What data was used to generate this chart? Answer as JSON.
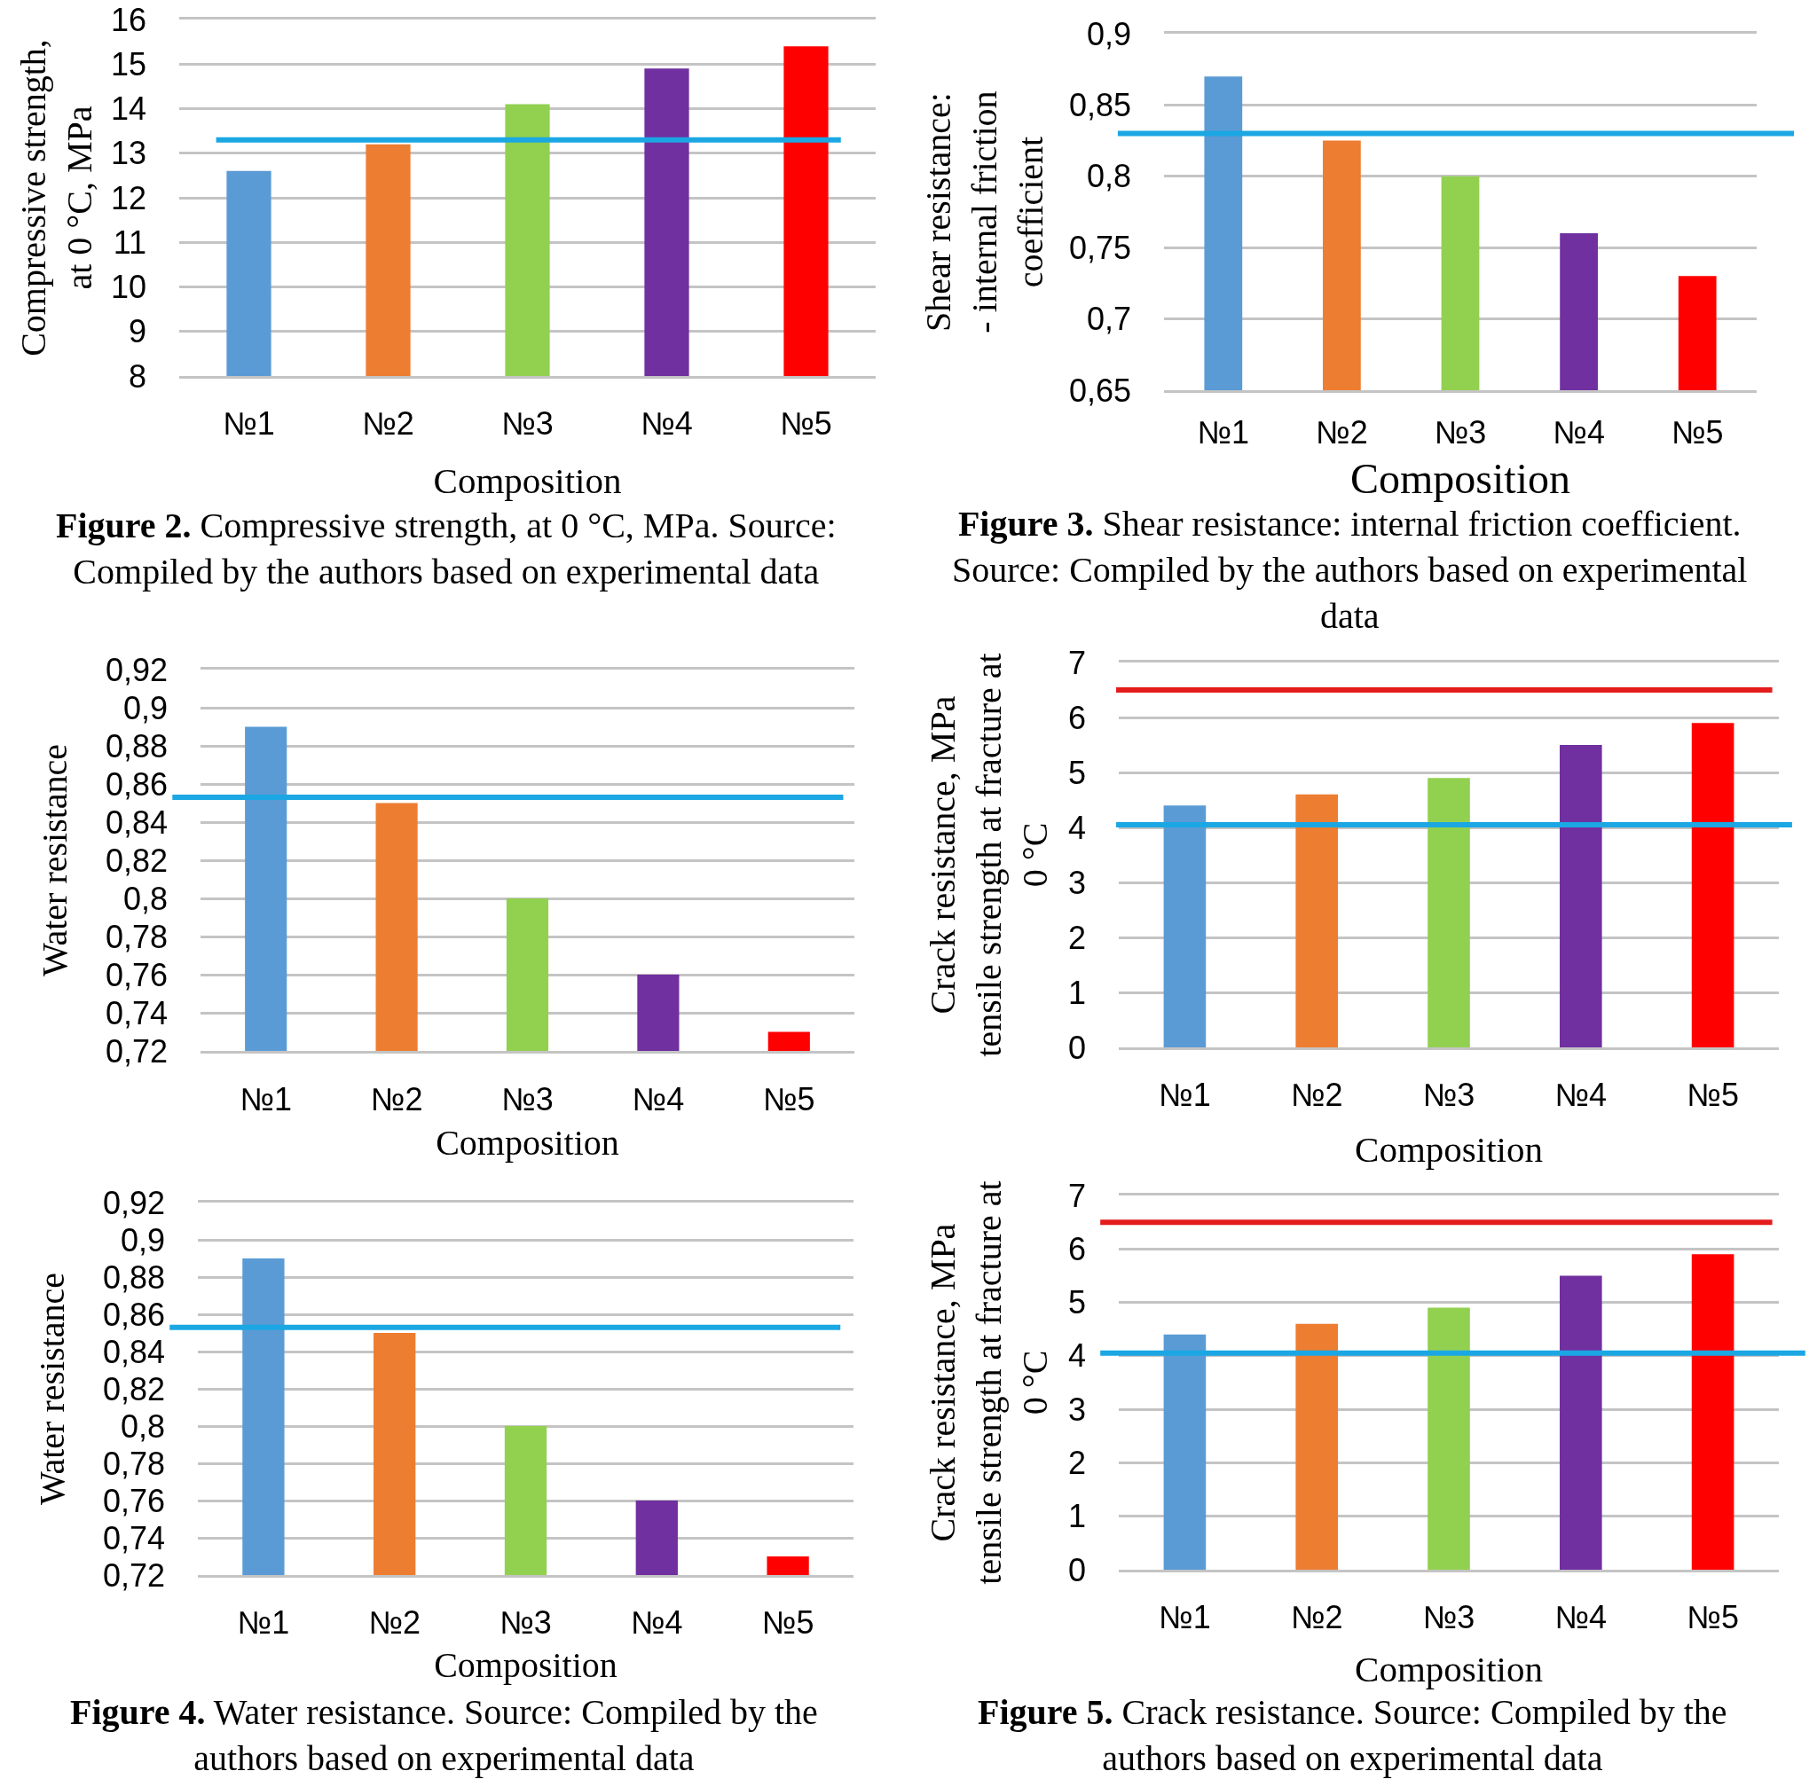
{
  "chart_data": [
    {
      "type": "bar",
      "categories": [
        "№1",
        "№2",
        "№3",
        "№4",
        "№5"
      ],
      "values": [
        12.6,
        13.2,
        14.1,
        14.9,
        15.4
      ],
      "colors": [
        "#5b9bd5",
        "#ed7d31",
        "#92d050",
        "#7030a0",
        "#ff0000"
      ],
      "xlabel": "Composition",
      "ylabel": "Compressive strength,\nat 0 °C, MPa",
      "ylim": [
        8,
        16
      ],
      "yticks": [
        8,
        9,
        10,
        11,
        12,
        13,
        14,
        15,
        16
      ],
      "grid": "y",
      "ref_lines": [
        {
          "axis": "y",
          "value": 13.3,
          "color": "#1ba7e3"
        }
      ],
      "annotations": [
        "Figure 2. Compressive strength, at 0 °C, MPa. Source:\nCompiled by the authors based on experimental data"
      ]
    },
    {
      "type": "bar",
      "categories": [
        "№1",
        "№2",
        "№3",
        "№4",
        "№5"
      ],
      "values": [
        0.87,
        0.825,
        0.8,
        0.76,
        0.73
      ],
      "colors": [
        "#5b9bd5",
        "#ed7d31",
        "#92d050",
        "#7030a0",
        "#ff0000"
      ],
      "xlabel": "Composition",
      "ylabel": "Shear resistance:\n- internal friction\ncoefficient",
      "ylim": [
        0.65,
        0.9
      ],
      "yticks": [
        {
          "value": 0.65,
          "label": "0,65"
        },
        {
          "value": 0.7,
          "label": "0,7"
        },
        {
          "value": 0.75,
          "label": "0,75"
        },
        {
          "value": 0.8,
          "label": "0,8"
        },
        {
          "value": 0.85,
          "label": "0,85"
        },
        {
          "value": 0.9,
          "label": "0,9"
        }
      ],
      "grid": "y",
      "ref_lines": [
        {
          "axis": "y",
          "value": 0.83,
          "color": "#1ba7e3"
        }
      ],
      "annotations": [
        "Figure 3. Shear resistance: internal friction coefficient.\nSource: Compiled by the authors based on experimental\ndata"
      ]
    },
    {
      "type": "bar",
      "categories": [
        "№1",
        "№2",
        "№3",
        "№4",
        "№5"
      ],
      "values": [
        0.89,
        0.85,
        0.8,
        0.76,
        0.73
      ],
      "colors": [
        "#5b9bd5",
        "#ed7d31",
        "#92d050",
        "#7030a0",
        "#ff0000"
      ],
      "xlabel": "Composition",
      "ylabel": "Water resistance",
      "ylim": [
        0.72,
        0.92
      ],
      "yticks": [
        {
          "value": 0.72,
          "label": "0,72"
        },
        {
          "value": 0.74,
          "label": "0,74"
        },
        {
          "value": 0.76,
          "label": "0,76"
        },
        {
          "value": 0.78,
          "label": "0,78"
        },
        {
          "value": 0.8,
          "label": "0,8"
        },
        {
          "value": 0.82,
          "label": "0,82"
        },
        {
          "value": 0.84,
          "label": "0,84"
        },
        {
          "value": 0.86,
          "label": "0,86"
        },
        {
          "value": 0.88,
          "label": "0,88"
        },
        {
          "value": 0.9,
          "label": "0,9"
        },
        {
          "value": 0.92,
          "label": "0,92"
        }
      ],
      "grid": "y",
      "ref_lines": [
        {
          "axis": "y",
          "value": 0.853,
          "color": "#1ba7e3"
        }
      ]
    },
    {
      "type": "bar",
      "categories": [
        "№1",
        "№2",
        "№3",
        "№4",
        "№5"
      ],
      "values": [
        4.4,
        4.6,
        4.9,
        5.5,
        5.9
      ],
      "colors": [
        "#5b9bd5",
        "#ed7d31",
        "#92d050",
        "#7030a0",
        "#ff0000"
      ],
      "xlabel": "Composition",
      "ylabel": "Crack resistance, MPa\ntensile strength at fracture at\n0 °C",
      "ylim": [
        0,
        7
      ],
      "yticks": [
        0,
        1,
        2,
        3,
        4,
        5,
        6,
        7
      ],
      "grid": "y",
      "ref_lines": [
        {
          "axis": "y",
          "value": 6.5,
          "color": "#e41c1c"
        },
        {
          "axis": "y",
          "value": 4.05,
          "color": "#1ba7e3"
        }
      ]
    },
    {
      "type": "bar",
      "categories": [
        "№1",
        "№2",
        "№3",
        "№4",
        "№5"
      ],
      "values": [
        0.89,
        0.85,
        0.8,
        0.76,
        0.73
      ],
      "colors": [
        "#5b9bd5",
        "#ed7d31",
        "#92d050",
        "#7030a0",
        "#ff0000"
      ],
      "xlabel": "Composition",
      "ylabel": "Water resistance",
      "ylim": [
        0.72,
        0.92
      ],
      "yticks": [
        {
          "value": 0.72,
          "label": "0,72"
        },
        {
          "value": 0.74,
          "label": "0,74"
        },
        {
          "value": 0.76,
          "label": "0,76"
        },
        {
          "value": 0.78,
          "label": "0,78"
        },
        {
          "value": 0.8,
          "label": "0,8"
        },
        {
          "value": 0.82,
          "label": "0,82"
        },
        {
          "value": 0.84,
          "label": "0,84"
        },
        {
          "value": 0.86,
          "label": "0,86"
        },
        {
          "value": 0.88,
          "label": "0,88"
        },
        {
          "value": 0.9,
          "label": "0,9"
        },
        {
          "value": 0.92,
          "label": "0,92"
        }
      ],
      "grid": "y",
      "ref_lines": [
        {
          "axis": "y",
          "value": 0.853,
          "color": "#1ba7e3"
        }
      ],
      "annotations": [
        "Figure 4. Water resistance. Source: Compiled by the\nauthors based on experimental data"
      ]
    },
    {
      "type": "bar",
      "categories": [
        "№1",
        "№2",
        "№3",
        "№4",
        "№5"
      ],
      "values": [
        4.4,
        4.6,
        4.9,
        5.5,
        5.9
      ],
      "colors": [
        "#5b9bd5",
        "#ed7d31",
        "#92d050",
        "#7030a0",
        "#ff0000"
      ],
      "xlabel": "Composition",
      "ylabel": "Crack resistance, MPa\ntensile strength at fracture at\n0 °C",
      "ylim": [
        0,
        7
      ],
      "yticks": [
        0,
        1,
        2,
        3,
        4,
        5,
        6,
        7
      ],
      "grid": "y",
      "ref_lines": [
        {
          "axis": "y",
          "value": 6.5,
          "color": "#e41c1c"
        },
        {
          "axis": "y",
          "value": 4.05,
          "color": "#1ba7e3"
        }
      ],
      "annotations": [
        "Figure 5. Crack resistance. Source: Compiled by the\nauthors based on experimental data"
      ]
    }
  ]
}
